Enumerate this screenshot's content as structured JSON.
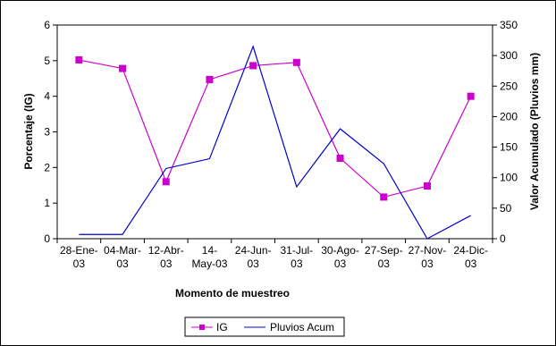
{
  "chart_data": {
    "type": "line",
    "categories": [
      [
        "28-Ene-",
        "03"
      ],
      [
        "04-Mar-",
        "03"
      ],
      [
        "12-Abr-",
        "03"
      ],
      [
        "14-",
        "May-03"
      ],
      [
        "24-Jun-",
        "03"
      ],
      [
        "31-Jul-",
        "03"
      ],
      [
        "30-Ago-",
        "03"
      ],
      [
        "27-Sep-",
        "03"
      ],
      [
        "27-Nov-",
        "03"
      ],
      [
        "24-Dic-",
        "03"
      ]
    ],
    "xlabel": "Momento de muestreo",
    "ylabel_left": "Porcentaje (IG)",
    "ylabel_right": "Valor Acumulado (Pluvios mm)",
    "y_left": {
      "min": 0,
      "max": 6,
      "step": 1
    },
    "y_right": {
      "min": 0,
      "max": 350,
      "step": 50
    },
    "grid": false,
    "legend_position": "bottom",
    "series": [
      {
        "name": "IG",
        "axis": "left",
        "color": "#CC00CC",
        "marker": "square",
        "values": [
          5.02,
          4.78,
          1.6,
          4.47,
          4.86,
          4.95,
          2.26,
          1.17,
          1.48,
          4.0
        ]
      },
      {
        "name": "Pluvios Acum",
        "axis": "right",
        "color": "#0000CC",
        "marker": "none",
        "values": [
          7,
          7,
          115,
          131,
          315,
          85,
          180,
          123,
          0,
          38
        ]
      }
    ]
  }
}
